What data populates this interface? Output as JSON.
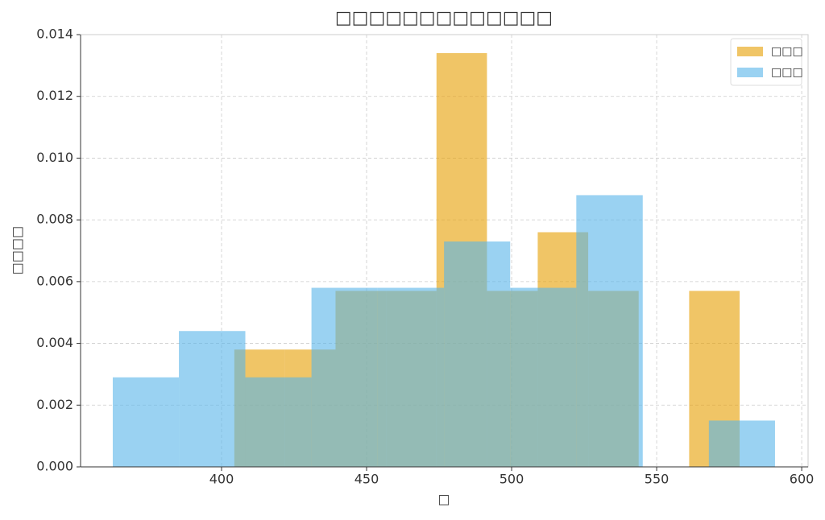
{
  "chart_data": {
    "type": "histogram",
    "title": "□□□□□□□□□□□□□",
    "xlabel": "□",
    "ylabel": "□□□□",
    "series": [
      {
        "name": "□□□",
        "color": "#E69F00",
        "opacity": 0.6,
        "bins": [
          404.4,
          421.9,
          439.3,
          456.7,
          474.1,
          491.5,
          509.0,
          526.4,
          543.8,
          561.2,
          578.6
        ],
        "values": [
          0.0038,
          0.0038,
          0.0057,
          0.0057,
          0.0134,
          0.0057,
          0.0076,
          0.0057,
          0,
          0.0057
        ]
      },
      {
        "name": "□□□",
        "color": "#56B4E9",
        "opacity": 0.6,
        "bins": [
          362.5,
          385.3,
          408.2,
          431.0,
          453.8,
          476.7,
          499.5,
          522.3,
          545.2,
          568.0,
          590.8
        ],
        "values": [
          0.0029,
          0.0044,
          0.0029,
          0.0058,
          0.0058,
          0.0073,
          0.0058,
          0.0088,
          0,
          0.0015
        ]
      }
    ],
    "xlim": [
      351.4,
      602.2
    ],
    "xticks": [
      400,
      450,
      500,
      550,
      600
    ],
    "ylim": [
      0,
      0.014
    ],
    "yticks": [
      {
        "value": 0,
        "label": "0.000"
      },
      {
        "value": 0.002,
        "label": "0.002"
      },
      {
        "value": 0.004,
        "label": "0.004"
      },
      {
        "value": 0.006,
        "label": "0.006"
      },
      {
        "value": 0.008,
        "label": "0.008"
      },
      {
        "value": 0.01,
        "label": "0.010"
      },
      {
        "value": 0.012,
        "label": "0.012"
      },
      {
        "value": 0.014,
        "label": "0.014"
      }
    ],
    "grid": true,
    "legend": "upper-right"
  }
}
